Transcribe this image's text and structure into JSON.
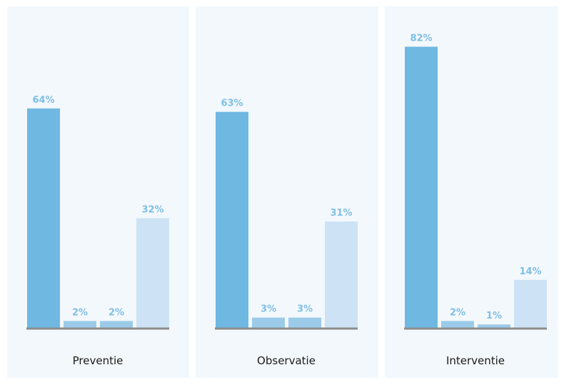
{
  "colors": {
    "panel_bg": "#f3f8fc",
    "bar_primary": "#6fb8e2",
    "bar_secondary": "#9ccbea",
    "bar_tertiary": "#cde3f5",
    "label": "#7fbfe5",
    "baseline": "#8c8c8c"
  },
  "chart_data": [
    {
      "type": "bar",
      "category": "Preventie",
      "values": [
        64,
        2,
        2,
        32
      ],
      "labels": [
        "64%",
        "2%",
        "2%",
        "32%"
      ],
      "ylim": [
        0,
        100
      ]
    },
    {
      "type": "bar",
      "category": "Observatie",
      "values": [
        63,
        3,
        3,
        31
      ],
      "labels": [
        "63%",
        "3%",
        "3%",
        "31%"
      ],
      "ylim": [
        0,
        100
      ]
    },
    {
      "type": "bar",
      "category": "Interventie",
      "values": [
        82,
        2,
        1,
        14
      ],
      "labels": [
        "82%",
        "2%",
        "1%",
        "14%"
      ],
      "ylim": [
        0,
        100
      ]
    }
  ]
}
